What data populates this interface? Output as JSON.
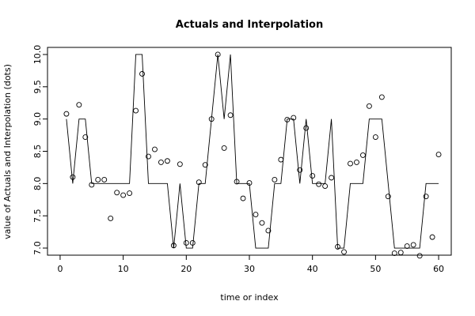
{
  "chart_data": {
    "type": "line",
    "title": "Actuals and Interpolation",
    "xlabel": "time or index",
    "ylabel": "value of Actuals and Interpolation (dots)",
    "xlim": [
      -2,
      62
    ],
    "ylim": [
      6.89,
      10.11
    ],
    "xticks": [
      0,
      10,
      20,
      30,
      40,
      50,
      60
    ],
    "yticks": [
      7.0,
      7.5,
      8.0,
      8.5,
      9.0,
      9.5,
      10.0
    ],
    "ytick_labels": [
      "7.0",
      "7.5",
      "8.0",
      "8.5",
      "9.0",
      "9.5",
      "10.0"
    ],
    "grid": false,
    "series": [
      {
        "role": "interpolation-line",
        "x": [
          1,
          2,
          3,
          4,
          5,
          6,
          7,
          8,
          9,
          10,
          11,
          12,
          13,
          14,
          15,
          16,
          17,
          18,
          19,
          20,
          21,
          22,
          23,
          24,
          25,
          26,
          27,
          28,
          29,
          30,
          31,
          32,
          33,
          34,
          35,
          36,
          37,
          38,
          39,
          40,
          41,
          42,
          43,
          44,
          45,
          46,
          47,
          48,
          49,
          50,
          51,
          52,
          53,
          54,
          55,
          56,
          57,
          58,
          59,
          60
        ],
        "values": [
          9.0,
          8.0,
          9.0,
          9.0,
          8.0,
          8.0,
          8.0,
          8.0,
          8.0,
          8.0,
          8.0,
          10.0,
          10.0,
          8.0,
          8.0,
          8.0,
          8.0,
          7.0,
          8.0,
          7.0,
          7.0,
          8.0,
          8.0,
          9.0,
          10.0,
          9.0,
          10.0,
          8.0,
          8.0,
          8.0,
          7.0,
          7.0,
          7.0,
          8.0,
          8.0,
          9.0,
          9.0,
          8.0,
          9.0,
          8.0,
          8.0,
          8.0,
          9.0,
          7.0,
          7.0,
          8.0,
          8.0,
          8.0,
          9.0,
          9.0,
          9.0,
          8.0,
          7.0,
          7.0,
          7.0,
          7.0,
          7.0,
          8.0,
          8.0,
          8.0
        ],
        "color": "#000000"
      },
      {
        "role": "actual-points",
        "x": [
          1,
          2,
          3,
          4,
          5,
          6,
          7,
          8,
          9,
          10,
          11,
          12,
          13,
          14,
          15,
          16,
          17,
          18,
          19,
          20,
          21,
          22,
          23,
          24,
          25,
          26,
          27,
          28,
          29,
          30,
          31,
          32,
          33,
          34,
          35,
          36,
          37,
          38,
          39,
          40,
          41,
          42,
          43,
          44,
          45,
          46,
          47,
          48,
          49,
          50,
          51,
          52,
          53,
          54,
          55,
          56,
          57,
          58,
          59,
          60
        ],
        "values": [
          9.08,
          8.1,
          9.22,
          8.72,
          7.98,
          8.06,
          8.06,
          7.46,
          7.86,
          7.82,
          7.85,
          9.13,
          9.7,
          8.42,
          8.53,
          8.33,
          8.35,
          7.04,
          8.3,
          7.08,
          7.08,
          8.02,
          8.29,
          9.0,
          10.0,
          8.55,
          9.06,
          8.03,
          7.77,
          8.01,
          7.52,
          7.39,
          7.27,
          8.06,
          8.37,
          8.99,
          9.02,
          8.21,
          8.86,
          8.12,
          7.99,
          7.96,
          8.09,
          7.02,
          6.94,
          8.31,
          8.33,
          8.44,
          9.2,
          8.72,
          9.34,
          7.8,
          6.92,
          6.93,
          7.03,
          7.05,
          6.88,
          7.8,
          7.17,
          8.45
        ],
        "color": "#000000"
      }
    ]
  }
}
